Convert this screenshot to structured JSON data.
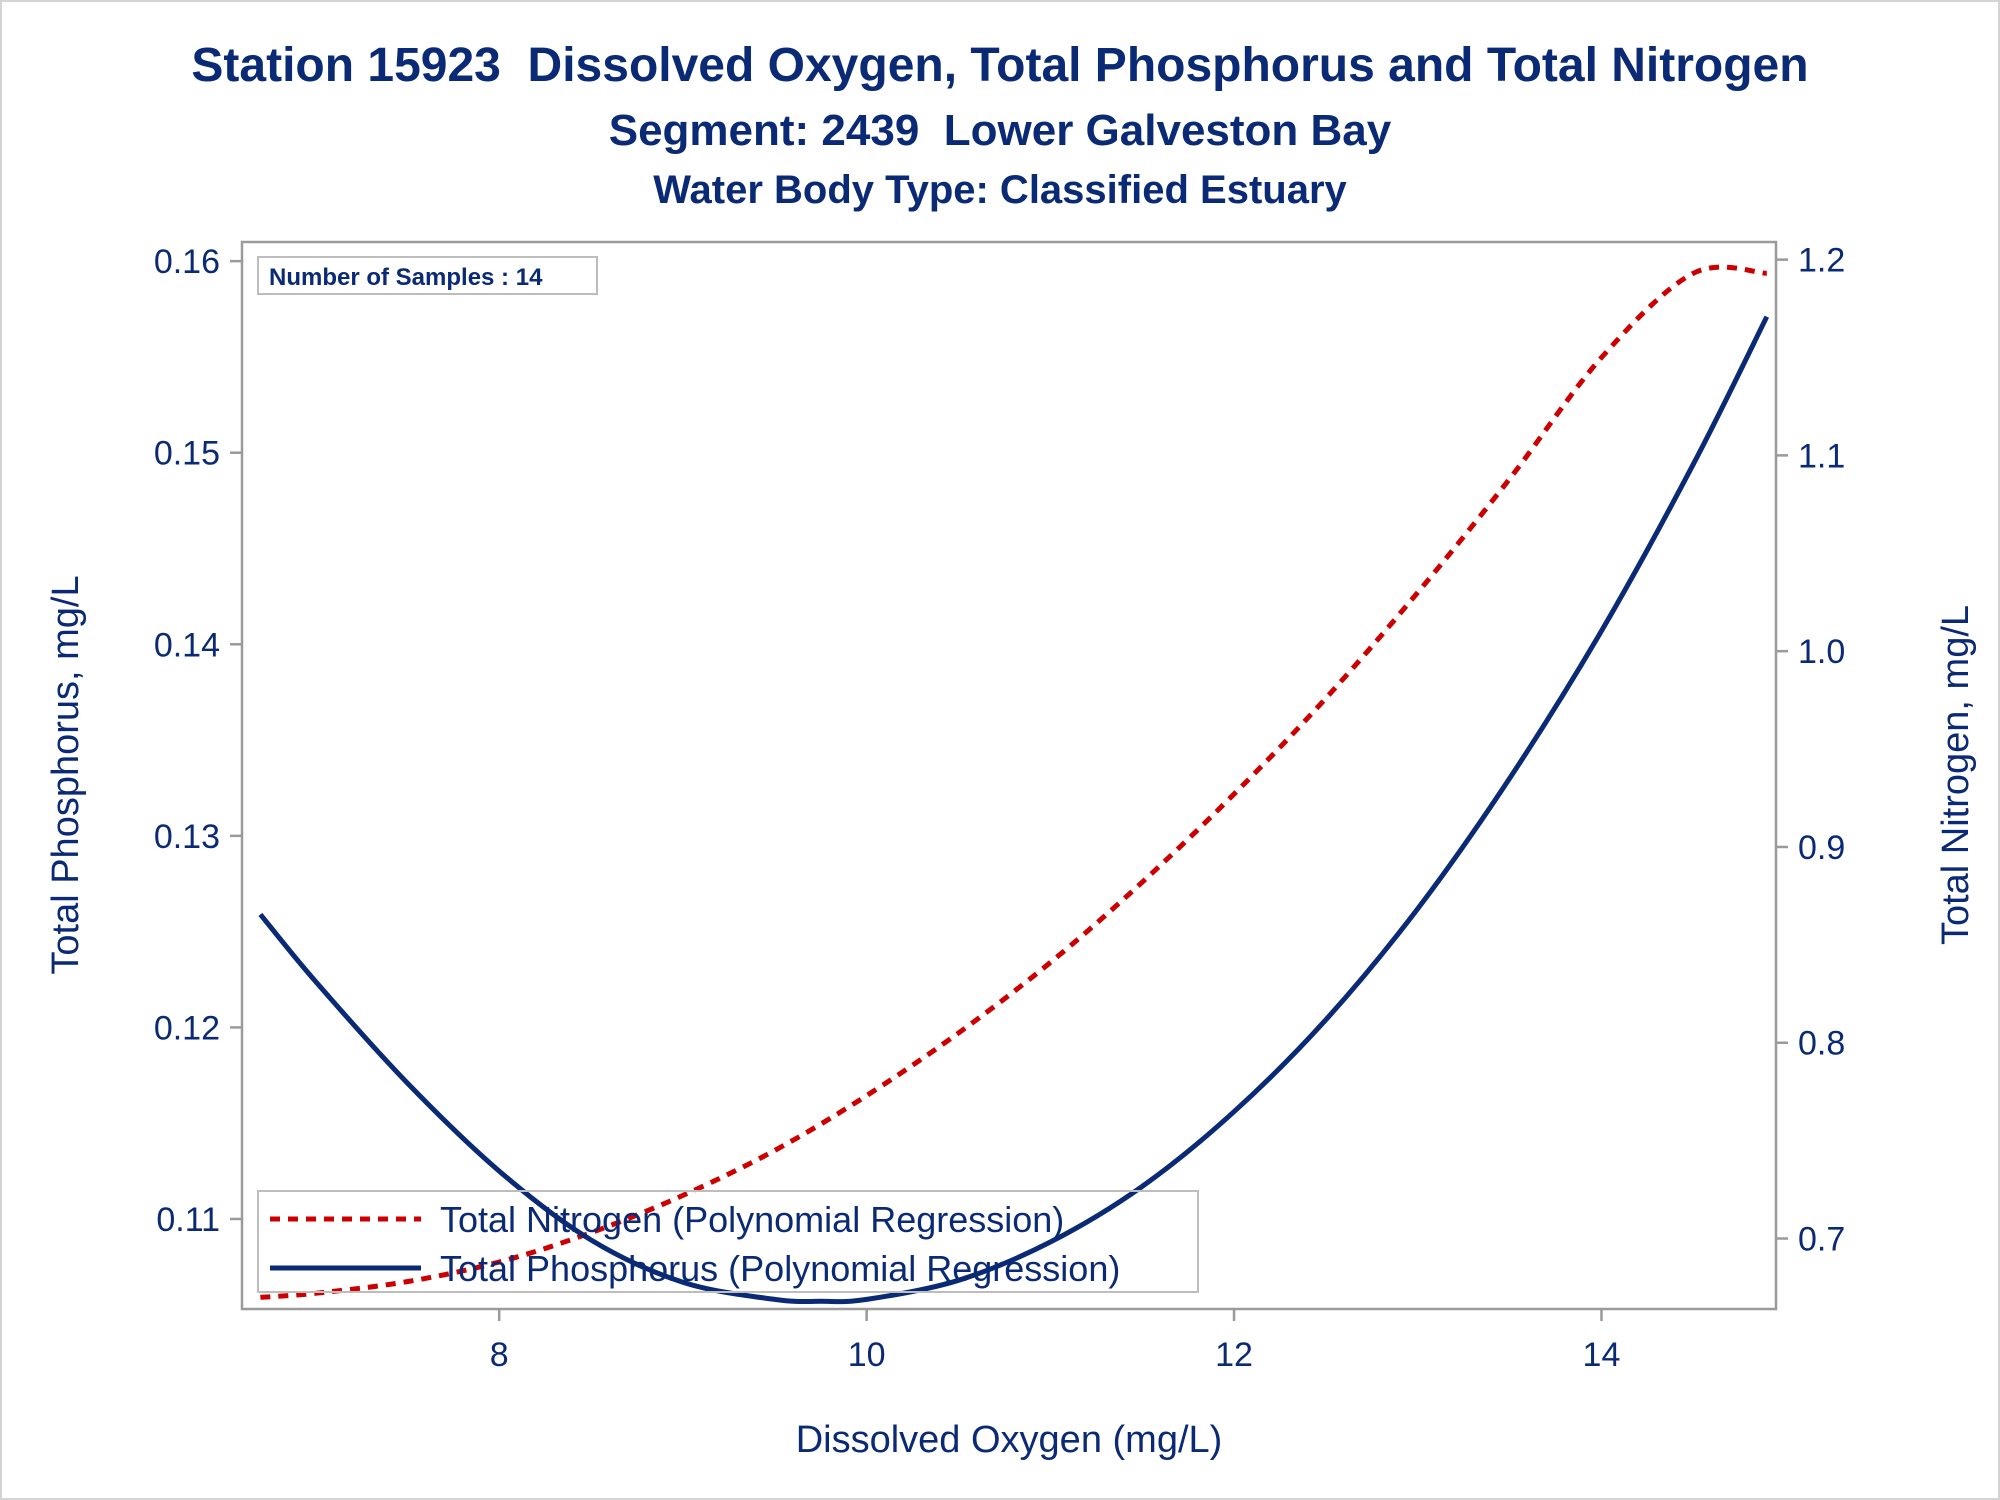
{
  "titles": {
    "line1": "Station 15923  Dissolved Oxygen, Total Phosphorus and Total Nitrogen",
    "line2": "Segment: 2439  Lower Galveston Bay",
    "line3": "Water Body Type: Classified Estuary"
  },
  "sample_box": {
    "text": "Number of Samples : 14"
  },
  "colors": {
    "text": "#0b2a75",
    "phosphorus": "#0b2a75",
    "nitrogen": "#cc0000",
    "axis": "#9a9a9a"
  },
  "chart_data": {
    "type": "line",
    "xlabel": "Dissolved Oxygen (mg/L)",
    "ylabel": "Total Phosphorus, mg/L",
    "y2label": "Total Nitrogen, mg/L",
    "xlim": [
      6.6,
      14.95
    ],
    "ylim": [
      0.1053,
      0.161
    ],
    "y2lim": [
      0.664,
      1.209
    ],
    "x_ticks": [
      "8",
      "10",
      "12",
      "14"
    ],
    "y_ticks": [
      "0.11",
      "0.12",
      "0.13",
      "0.14",
      "0.15",
      "0.16"
    ],
    "y2_ticks": [
      "0.7",
      "0.8",
      "0.9",
      "1.0",
      "1.1",
      "1.2"
    ],
    "legend_position": "bottom-left",
    "grid": false,
    "series": [
      {
        "name": "Total Nitrogen (Polynomial Regression)",
        "axis": "right",
        "style": "dashed",
        "x": [
          6.7,
          7.0,
          7.5,
          8.0,
          8.5,
          9.0,
          9.5,
          10.0,
          10.5,
          11.0,
          11.5,
          12.0,
          12.5,
          13.0,
          13.5,
          14.0,
          14.5,
          14.9
        ],
        "y": [
          0.67,
          0.672,
          0.678,
          0.688,
          0.703,
          0.722,
          0.745,
          0.773,
          0.805,
          0.841,
          0.882,
          0.927,
          0.976,
          1.03,
          1.088,
          1.15,
          1.217,
          1.193
        ]
      },
      {
        "name": "Total Phosphorus (Polynomial Regression)",
        "axis": "left",
        "style": "solid",
        "x": [
          6.7,
          7.0,
          7.5,
          8.0,
          8.5,
          9.0,
          9.5,
          9.75,
          10.0,
          10.5,
          11.0,
          11.5,
          12.0,
          12.5,
          13.0,
          13.5,
          14.0,
          14.5,
          14.9
        ],
        "y": [
          0.1259,
          0.1224,
          0.1171,
          0.1125,
          0.1089,
          0.1067,
          0.1058,
          0.1057,
          0.1058,
          0.1068,
          0.1088,
          0.1117,
          0.1156,
          0.1204,
          0.1262,
          0.133,
          0.1407,
          0.1494,
          0.1571
        ]
      }
    ]
  }
}
